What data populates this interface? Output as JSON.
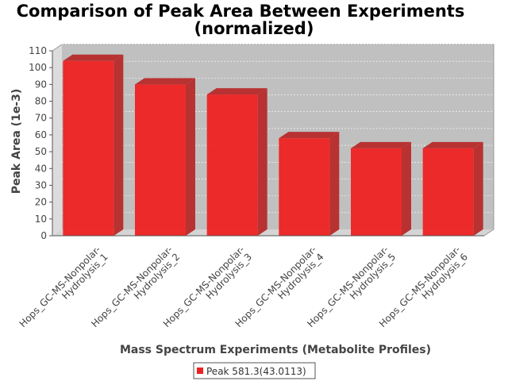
{
  "chart_data": {
    "type": "bar",
    "title_line1": "Comparison of Peak Area Between Experiments",
    "title_line2": "(normalized)",
    "xlabel": "Mass Spectrum Experiments (Metabolite Profiles)",
    "ylabel": "Peak Area (1e-3)",
    "ylim": [
      0,
      110
    ],
    "yticks": [
      0,
      10,
      20,
      30,
      40,
      50,
      60,
      70,
      80,
      90,
      100,
      110
    ],
    "grid": true,
    "legend_position": "bottom",
    "categories": [
      [
        "Hops_GC-MS-Nonpolar-",
        "Hydrolysis_1"
      ],
      [
        "Hops_GC-MS-Nonpolar-",
        "Hydrolysis_2"
      ],
      [
        "Hops_GC-MS-Nonpolar-",
        "Hydrolysis_3"
      ],
      [
        "Hops_GC-MS-Nonpolar-",
        "Hydrolysis_4"
      ],
      [
        "Hops_GC-MS-Nonpolar-",
        "Hydrolysis_5"
      ],
      [
        "Hops_GC-MS-Nonpolar-",
        "Hydrolysis_6"
      ]
    ],
    "series": [
      {
        "name": "Peak 581.3(43.0113)",
        "color": "#ee2222",
        "values": [
          104,
          90,
          84,
          58,
          52,
          52
        ]
      }
    ]
  }
}
